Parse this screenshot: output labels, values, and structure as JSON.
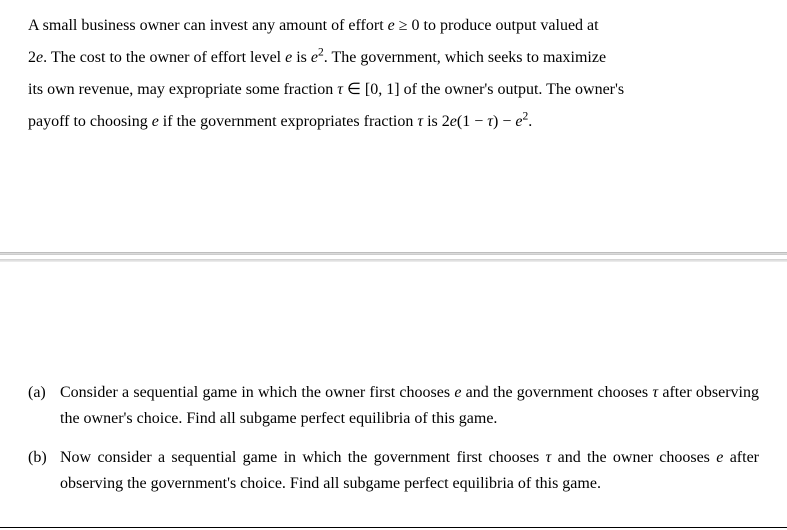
{
  "intro": {
    "line1_prefix": "A small business owner can invest any amount of effort ",
    "e_sym": "e",
    "ge": " ≥ ",
    "zero": "0",
    "line1_suffix": " to produce output valued at",
    "line2_prefix": "2",
    "line2_mid1": ". The cost to the owner of effort level ",
    "line2_mid2": " is ",
    "sq": "2",
    "line2_mid3": ". The government, which seeks to maximize",
    "line3_prefix": "its own revenue, may expropriate some fraction ",
    "tau": "τ",
    "elem": " ∈ ",
    "interval": "[0, 1]",
    "line3_suffix": " of the owner's output. The owner's",
    "line4_prefix": "payoff to choosing ",
    "line4_mid1": " if the government expropriates fraction ",
    "line4_mid2": " is ",
    "expr_2e": "2",
    "expr_open": "(1 − ",
    "expr_close": ") − ",
    "line4_end": "."
  },
  "qa": {
    "label": "(a)",
    "text_prefix": "Consider a sequential game in which the owner first chooses ",
    "text_mid1": " and the government chooses ",
    "text_mid2": " after observing the owner's choice. Find all subgame perfect equilibria of this game."
  },
  "qb": {
    "label": "(b)",
    "text_prefix": "Now consider a sequential game in which the government first chooses ",
    "text_mid1": " and the owner chooses ",
    "text_mid2": " after observing the government's choice. Find all subgame perfect equilibria of this game."
  },
  "math": {
    "e": "e",
    "tau": "τ"
  }
}
